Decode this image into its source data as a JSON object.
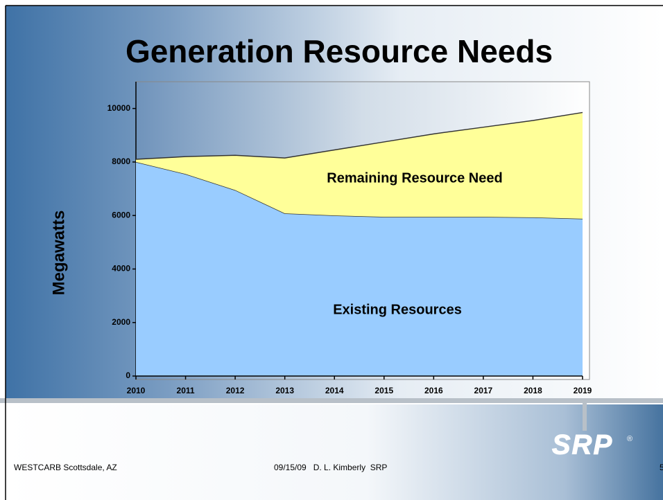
{
  "chart_data": {
    "type": "area",
    "title": "Generation Resource Needs",
    "ylabel": "Megawatts",
    "x": [
      2010,
      2011,
      2012,
      2013,
      2014,
      2015,
      2016,
      2017,
      2018,
      2019
    ],
    "xlim": [
      2010,
      2019
    ],
    "xticks": [
      2010,
      2011,
      2012,
      2013,
      2014,
      2015,
      2016,
      2017,
      2018,
      2019
    ],
    "ylim": [
      0,
      11000
    ],
    "yticks": [
      0,
      2000,
      4000,
      6000,
      8000,
      10000
    ],
    "stacked": true,
    "series": [
      {
        "name": "Existing Resources",
        "color": "#99ccff",
        "values": [
          8000,
          7550,
          6950,
          6080,
          6000,
          5950,
          5950,
          5950,
          5930,
          5880
        ]
      },
      {
        "name": "Remaining Resource Need",
        "color": "#ffff99",
        "values": [
          100,
          650,
          1300,
          2070,
          2450,
          2800,
          3100,
          3350,
          3620,
          3970
        ]
      }
    ]
  },
  "footer": {
    "left": "WESTCARB Scottsdale, AZ",
    "center": "09/15/09   D. L. Kimberly  SRP",
    "page": "5",
    "logo": "SRP"
  }
}
